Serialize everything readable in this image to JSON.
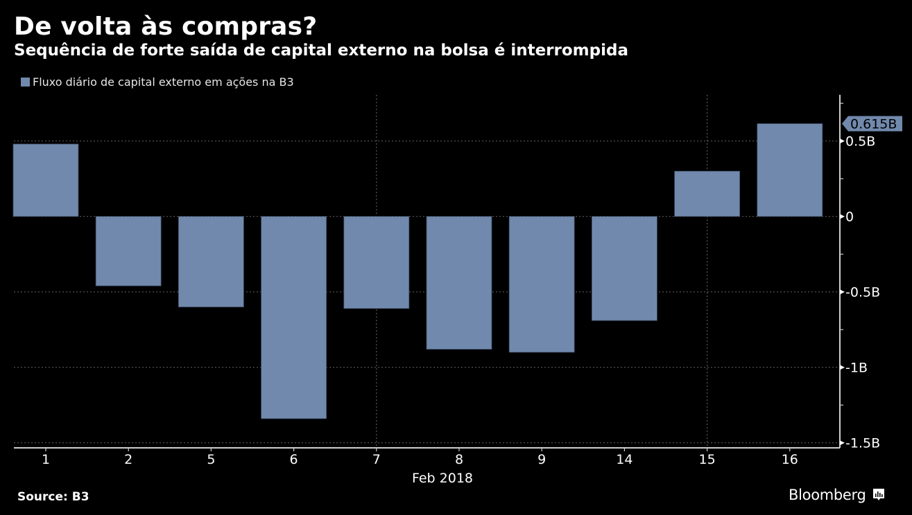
{
  "header": {
    "title": "De volta às compras?",
    "subtitle": "Sequência de forte saída de capital externo na bolsa é interrompida"
  },
  "footer": {
    "source": "Source: B3",
    "brand": "Bloomberg",
    "brand_icon": "bloomberg-chart-icon"
  },
  "colors": {
    "background": "#000000",
    "bar": "#7189ac",
    "axis": "#cfcfcf",
    "grid": "#5a5a5a",
    "text": "#ffffff"
  },
  "chart_data": {
    "type": "bar",
    "title": "De volta às compras?",
    "subtitle": "Sequência de forte saída de capital externo na bolsa é interrompida",
    "legend": [
      "Fluxo diário de capital externo em ações na B3"
    ],
    "legend_position": "top-left",
    "xlabel": "Feb 2018",
    "ylabel": "",
    "categories": [
      "1",
      "2",
      "5",
      "6",
      "7",
      "8",
      "9",
      "14",
      "15",
      "16"
    ],
    "series": [
      {
        "name": "Fluxo diário de capital externo em ações na B3",
        "values": [
          0.48,
          -0.46,
          -0.6,
          -1.34,
          -0.61,
          -0.88,
          -0.9,
          -0.69,
          0.3,
          0.615
        ]
      }
    ],
    "units": "B",
    "ylim": [
      -1.5,
      0.8
    ],
    "yticks": [
      {
        "value": 0.5,
        "label": "0.5B"
      },
      {
        "value": 0,
        "label": "0"
      },
      {
        "value": -0.5,
        "label": "-0.5B"
      },
      {
        "value": -1,
        "label": "-1B"
      },
      {
        "value": -1.5,
        "label": "-1.5B"
      }
    ],
    "minor_yticks": [
      0.75,
      0.25,
      -0.25,
      -0.75,
      -1.25
    ],
    "vertical_gridlines_at": [
      "7",
      "15"
    ],
    "y_axis_side": "right",
    "grid": true,
    "last_value_label": "0.615B"
  }
}
